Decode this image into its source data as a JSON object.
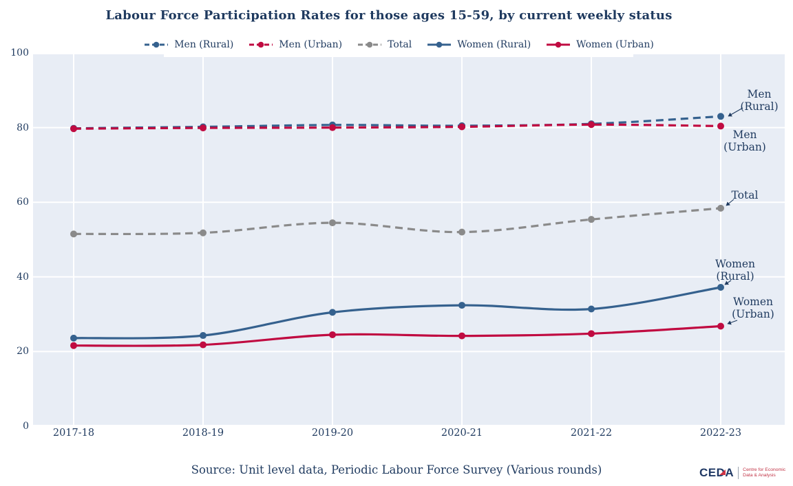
{
  "title": "Labour Force Participation Rates for those ages 15-59, by current weekly status",
  "source_note": "Source: Unit level data, Periodic Labour Force Survey (Various rounds)",
  "colors": {
    "navy_text": "#1F3A5F",
    "blue": "#35618E",
    "red": "#C00B41",
    "gray": "#8A8A8A",
    "plot_background": "#E8EDF5",
    "gridline": "#FFFFFF"
  },
  "chart_data": {
    "type": "line",
    "categories": [
      "2017-18",
      "2018-19",
      "2019-20",
      "2020-21",
      "2021-22",
      "2022-23"
    ],
    "series": [
      {
        "name": "Men (Rural)",
        "color": "#35618E",
        "style": "dashed",
        "values": [
          79.8,
          80.2,
          80.7,
          80.5,
          81.0,
          83.0
        ]
      },
      {
        "name": "Men (Urban)",
        "color": "#C00B41",
        "style": "dashed",
        "values": [
          79.7,
          79.9,
          80.0,
          80.2,
          80.8,
          80.4
        ]
      },
      {
        "name": "Total",
        "color": "#8A8A8A",
        "style": "dashed",
        "values": [
          51.5,
          51.8,
          54.5,
          52.0,
          55.4,
          58.4
        ]
      },
      {
        "name": "Women (Rural)",
        "color": "#35618E",
        "style": "solid",
        "values": [
          23.6,
          24.3,
          30.5,
          32.4,
          31.4,
          37.2
        ]
      },
      {
        "name": "Women (Urban)",
        "color": "#C00B41",
        "style": "solid",
        "values": [
          21.6,
          21.8,
          24.5,
          24.2,
          24.8,
          26.8
        ]
      }
    ],
    "ylim": [
      0,
      100
    ],
    "yticks": [
      0,
      20,
      40,
      60,
      80,
      100
    ],
    "ytick_labels": [
      "100",
      "80",
      "60",
      "40",
      "20",
      "0"
    ],
    "grid": true,
    "legend_position": "top"
  },
  "annotations": [
    {
      "line1": "Men",
      "line2": "(Rural)"
    },
    {
      "line1": "Men",
      "line2": "(Urban)"
    },
    {
      "line1": "Total",
      "line2": ""
    },
    {
      "line1": "Women",
      "line2": "(Rural)"
    },
    {
      "line1": "Women",
      "line2": "(Urban)"
    }
  ],
  "logo": {
    "wordmark": "CEDA",
    "tagline_line1": "Centre for Economic",
    "tagline_line2": "Data & Analysis"
  }
}
